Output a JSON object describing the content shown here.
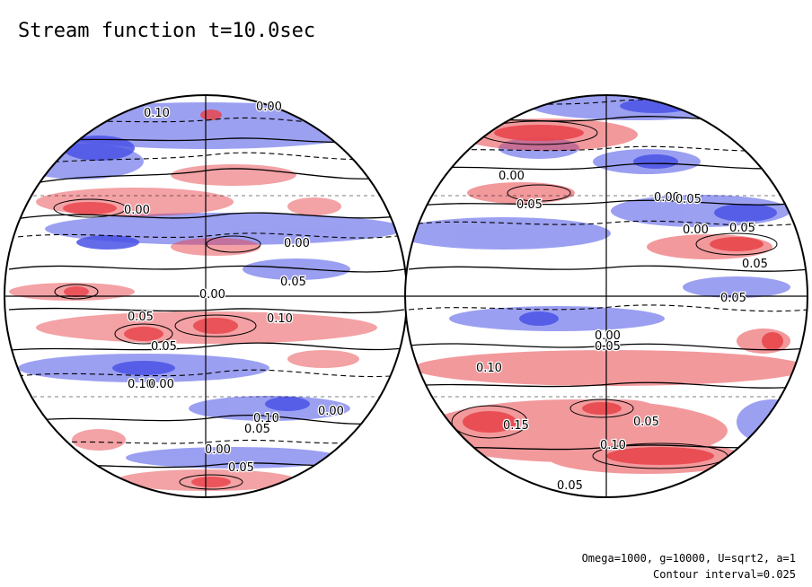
{
  "title": "Stream function t=10.0sec",
  "params_text": "Omega=1000, g=10000, U=sqrt2, a=1",
  "interval_text": "Contour interval=0.025",
  "colors": {
    "positive": "#e8464c",
    "negative": "#4a52e6",
    "outline": "#000000",
    "background": "#ffffff"
  },
  "hemispheres": [
    {
      "name": "left",
      "contour_labels": [
        "0.10",
        "0.00",
        "0.00",
        "0.00",
        "0.05",
        "0.00",
        "0.05",
        "0.10",
        "0.05",
        "0.10",
        "0.00",
        "0.10",
        "0.05",
        "0.00",
        "0.00",
        "0.05"
      ]
    },
    {
      "name": "right",
      "contour_labels": [
        "0.00",
        "0.05",
        "0.00",
        "0.05",
        "0.05",
        "0.00",
        "0.05",
        "0.05",
        "0.00",
        "0.05",
        "0.10",
        "0.15",
        "0.05",
        "0.10",
        "0.05"
      ]
    }
  ]
}
